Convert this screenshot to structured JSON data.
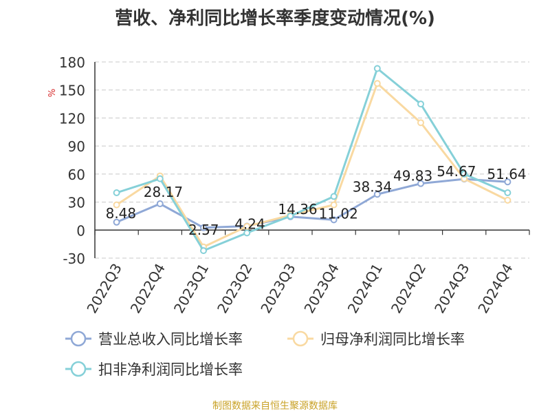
{
  "chart_data": {
    "type": "line",
    "title": "营收、净利同比增长率季度变动情况(%)",
    "ylabel": "%",
    "xlabel": "",
    "ylim": [
      -30,
      180
    ],
    "yticks": [
      -30,
      0,
      30,
      60,
      90,
      120,
      150,
      180
    ],
    "grid": true,
    "legend_position": "bottom",
    "categories": [
      "2022Q3",
      "2022Q4",
      "2023Q1",
      "2023Q2",
      "2023Q3",
      "2023Q4",
      "2024Q1",
      "2024Q2",
      "2024Q3",
      "2024Q4"
    ],
    "series": [
      {
        "name": "营业总收入同比增长率",
        "color": "#8fa8d6",
        "values": [
          8.48,
          28.17,
          2.57,
          4.24,
          14.36,
          11.02,
          38.34,
          49.83,
          54.67,
          51.64
        ],
        "data_labels": [
          "8.48",
          "28.17",
          "2.57",
          "4.24",
          "14.36",
          "11.02",
          "38.34",
          "49.83",
          "54.67",
          "51.64"
        ]
      },
      {
        "name": "归母净利润同比增长率",
        "color": "#f9d9a1",
        "values": [
          27,
          58,
          -18,
          4,
          16,
          27,
          157,
          115,
          55,
          32
        ]
      },
      {
        "name": "扣非净利润同比增长率",
        "color": "#85d0d8",
        "values": [
          40,
          55,
          -22,
          -3,
          15,
          36,
          173,
          135,
          60,
          40
        ]
      }
    ],
    "source": "制图数据来自恒生聚源数据库"
  }
}
